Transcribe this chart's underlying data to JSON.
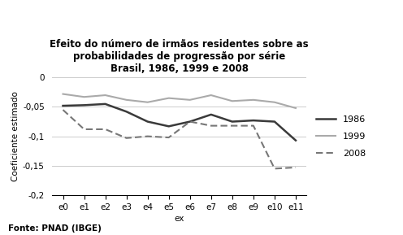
{
  "title_line1": "Efeito do número de irmãos residentes sobre as",
  "title_line2": "probabilidades de progressão por série",
  "title_line3": "Brasil, 1986, 1999 e 2008",
  "xlabel": "ex",
  "ylabel": "Coeficiente estimado",
  "fonte": "Fonte: PNAD (IBGE)",
  "x_labels": [
    "e0",
    "e1",
    "e2",
    "e3",
    "e4",
    "e5",
    "e6",
    "e7",
    "e8",
    "e9",
    "e10",
    "e11"
  ],
  "series_1986": [
    -0.048,
    -0.047,
    -0.045,
    -0.058,
    -0.075,
    -0.083,
    -0.075,
    -0.063,
    -0.075,
    -0.073,
    -0.075,
    -0.107
  ],
  "series_1999": [
    -0.028,
    -0.033,
    -0.03,
    -0.038,
    -0.042,
    -0.035,
    -0.038,
    -0.03,
    -0.04,
    -0.038,
    -0.042,
    -0.052
  ],
  "series_2008": [
    -0.055,
    -0.088,
    -0.088,
    -0.103,
    -0.1,
    -0.102,
    -0.075,
    -0.082,
    -0.082,
    -0.082,
    -0.155,
    -0.153
  ],
  "color_1986": "#3a3a3a",
  "color_1999": "#aaaaaa",
  "color_2008": "#777777",
  "ylim": [
    -0.2,
    0.0
  ],
  "yticks": [
    0,
    -0.05,
    -0.1,
    -0.15,
    -0.2
  ],
  "ytick_labels": [
    "0",
    "-0,05",
    "-0,1",
    "-0,15",
    "-0,2"
  ],
  "bg_color": "#ffffff",
  "title_fontsize": 8.5,
  "axis_fontsize": 7.5,
  "tick_fontsize": 7.5,
  "legend_fontsize": 8
}
